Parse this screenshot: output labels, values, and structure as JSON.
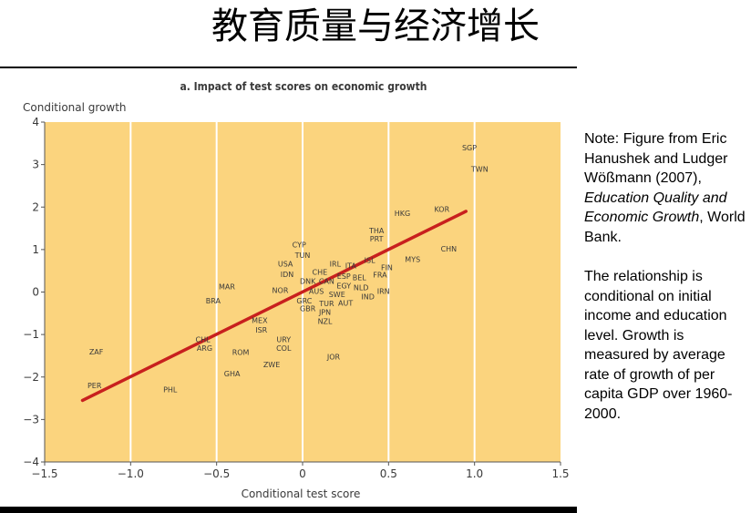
{
  "slide": {
    "title": "教育质量与经济增长"
  },
  "note": {
    "part1": "Note: Figure from Eric Hanushek and Ludger Wößmann (2007), ",
    "italic": "Education Quality and Economic Growth",
    "part2": ", World Bank.",
    "para2": "The relationship is conditional on initial income and education level. Growth is measured by average rate of growth of per capita GDP over 1960-2000."
  },
  "colors": {
    "plot_background": "#fbd47e",
    "regression_line": "#c8201e",
    "gridline": "#ffffff",
    "text": "#3a3a3a"
  },
  "chart_data": {
    "type": "scatter",
    "title": "a. Impact of test scores on economic growth",
    "xlabel": "Conditional test score",
    "ylabel": "Conditional growth",
    "xlim": [
      -1.5,
      1.5
    ],
    "ylim": [
      -4,
      4
    ],
    "xticks": [
      -1.5,
      -1.0,
      -0.5,
      0,
      0.5,
      1.0,
      1.5
    ],
    "xtick_labels": [
      "−1.5",
      "−1.0",
      "−0.5",
      "0",
      "0.5",
      "1.0",
      "1.5"
    ],
    "yticks": [
      4,
      3,
      2,
      1,
      0,
      -1,
      -2,
      -3,
      -4
    ],
    "ytick_labels": [
      "4",
      "3",
      "2",
      "1",
      "0",
      "−1",
      "−2",
      "−3",
      "−4"
    ],
    "grid": true,
    "fit_line": {
      "x": [
        -1.28,
        0.95
      ],
      "y": [
        -2.55,
        1.9
      ]
    },
    "points": [
      {
        "label": "SGP",
        "x": 0.97,
        "y": 3.4
      },
      {
        "label": "TWN",
        "x": 1.03,
        "y": 2.9
      },
      {
        "label": "KOR",
        "x": 0.81,
        "y": 1.95
      },
      {
        "label": "HKG",
        "x": 0.58,
        "y": 1.85
      },
      {
        "label": "THA",
        "x": 0.43,
        "y": 1.45
      },
      {
        "label": "PRT",
        "x": 0.43,
        "y": 1.25
      },
      {
        "label": "CHN",
        "x": 0.85,
        "y": 1.02
      },
      {
        "label": "MYS",
        "x": 0.64,
        "y": 0.77
      },
      {
        "label": "CYP",
        "x": -0.02,
        "y": 1.12
      },
      {
        "label": "TUN",
        "x": 0.0,
        "y": 0.87
      },
      {
        "label": "USA",
        "x": -0.1,
        "y": 0.67
      },
      {
        "label": "IRL",
        "x": 0.19,
        "y": 0.67
      },
      {
        "label": "ITA",
        "x": 0.28,
        "y": 0.62
      },
      {
        "label": "ISL",
        "x": 0.39,
        "y": 0.75
      },
      {
        "label": "FIN",
        "x": 0.49,
        "y": 0.58
      },
      {
        "label": "IDN",
        "x": -0.09,
        "y": 0.42
      },
      {
        "label": "CHE",
        "x": 0.1,
        "y": 0.47
      },
      {
        "label": "DNK",
        "x": 0.03,
        "y": 0.26
      },
      {
        "label": "CAN",
        "x": 0.14,
        "y": 0.26
      },
      {
        "label": "ESP",
        "x": 0.24,
        "y": 0.37
      },
      {
        "label": "BEL",
        "x": 0.33,
        "y": 0.34
      },
      {
        "label": "FRA",
        "x": 0.45,
        "y": 0.41
      },
      {
        "label": "EGY",
        "x": 0.24,
        "y": 0.15
      },
      {
        "label": "NLD",
        "x": 0.34,
        "y": 0.11
      },
      {
        "label": "IRN",
        "x": 0.47,
        "y": 0.02
      },
      {
        "label": "AUS",
        "x": 0.08,
        "y": 0.02
      },
      {
        "label": "SWE",
        "x": 0.2,
        "y": -0.05
      },
      {
        "label": "IND",
        "x": 0.38,
        "y": -0.11
      },
      {
        "label": "MAR",
        "x": -0.44,
        "y": 0.13
      },
      {
        "label": "NOR",
        "x": -0.13,
        "y": 0.04
      },
      {
        "label": "BRA",
        "x": -0.52,
        "y": -0.2
      },
      {
        "label": "GRC",
        "x": 0.01,
        "y": -0.2
      },
      {
        "label": "TUR",
        "x": 0.14,
        "y": -0.27
      },
      {
        "label": "AUT",
        "x": 0.25,
        "y": -0.26
      },
      {
        "label": "GBR",
        "x": 0.03,
        "y": -0.39
      },
      {
        "label": "JPN",
        "x": 0.13,
        "y": -0.47
      },
      {
        "label": "NZL",
        "x": 0.13,
        "y": -0.69
      },
      {
        "label": "MEX",
        "x": -0.25,
        "y": -0.67
      },
      {
        "label": "ISR",
        "x": -0.24,
        "y": -0.89
      },
      {
        "label": "CHL",
        "x": -0.58,
        "y": -1.12
      },
      {
        "label": "ARG",
        "x": -0.57,
        "y": -1.32
      },
      {
        "label": "URY",
        "x": -0.11,
        "y": -1.12
      },
      {
        "label": "COL",
        "x": -0.11,
        "y": -1.32
      },
      {
        "label": "ROM",
        "x": -0.36,
        "y": -1.42
      },
      {
        "label": "JOR",
        "x": 0.18,
        "y": -1.52
      },
      {
        "label": "ZAF",
        "x": -1.2,
        "y": -1.4
      },
      {
        "label": "ZWE",
        "x": -0.18,
        "y": -1.7
      },
      {
        "label": "GHA",
        "x": -0.41,
        "y": -1.92
      },
      {
        "label": "PER",
        "x": -1.21,
        "y": -2.2
      },
      {
        "label": "PHL",
        "x": -0.77,
        "y": -2.3
      }
    ]
  }
}
